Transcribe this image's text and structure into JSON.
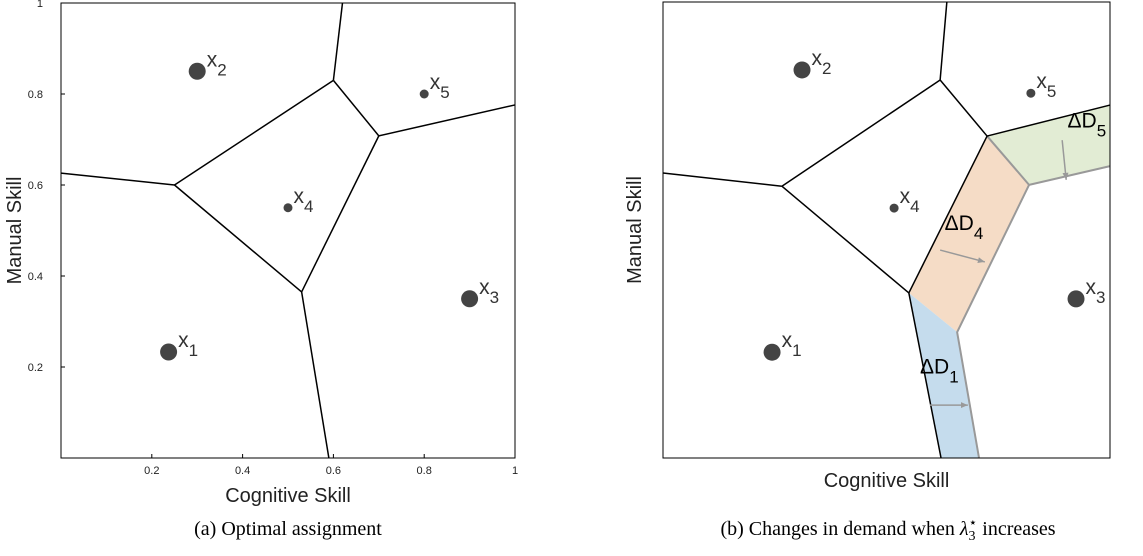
{
  "chart_data": [
    {
      "type": "scatter",
      "xlabel": "Cognitive Skill",
      "ylabel": "Manual Skill",
      "caption": "(a) Optimal assignment",
      "xlim": [
        0,
        1
      ],
      "ylim": [
        0,
        1
      ],
      "xticks": [
        0.2,
        0.4,
        0.6,
        0.8,
        1
      ],
      "yticks": [
        0.2,
        0.4,
        0.6,
        0.8,
        1
      ],
      "color": "#444",
      "x": [
        0.237,
        0.3,
        0.9,
        0.5,
        0.8
      ],
      "y": [
        0.233,
        0.85,
        0.35,
        0.55,
        0.8
      ],
      "marker_sizes": [
        "large",
        "large",
        "large",
        "small",
        "small"
      ],
      "point_labels": [
        {
          "text": "x",
          "sub": "1"
        },
        {
          "text": "x",
          "sub": "2"
        },
        {
          "text": "x",
          "sub": "3"
        },
        {
          "text": "x",
          "sub": "4"
        },
        {
          "text": "x",
          "sub": "5"
        }
      ],
      "boundaries": [
        [
          [
            0,
            0.626
          ],
          [
            0.25,
            0.6
          ]
        ],
        [
          [
            0.25,
            0.6
          ],
          [
            0.53,
            0.365
          ]
        ],
        [
          [
            0.25,
            0.6
          ],
          [
            0.6,
            0.83
          ]
        ],
        [
          [
            0.6,
            0.83
          ],
          [
            0.62,
            1
          ]
        ],
        [
          [
            0.6,
            0.83
          ],
          [
            0.7,
            0.708
          ]
        ],
        [
          [
            0.7,
            0.708
          ],
          [
            1,
            0.776
          ]
        ],
        [
          [
            0.7,
            0.708
          ],
          [
            0.53,
            0.365
          ]
        ],
        [
          [
            0.53,
            0.365
          ],
          [
            0.59,
            0
          ]
        ]
      ]
    },
    {
      "type": "scatter",
      "xlabel": "Cognitive Skill",
      "ylabel": "Manual Skill",
      "caption": {
        "before": "(b) Changes in demand when ",
        "symbol": "λ",
        "sub": "3",
        "sup": "⋆",
        "after": " increases"
      },
      "xlim": [
        0,
        1
      ],
      "ylim": [
        0,
        1
      ],
      "color": "#444",
      "x": [
        0.244,
        0.311,
        0.924,
        0.517,
        0.823
      ],
      "y": [
        0.232,
        0.851,
        0.349,
        0.548,
        0.8
      ],
      "marker_sizes": [
        "large",
        "large",
        "large",
        "small",
        "small"
      ],
      "point_labels": [
        {
          "text": "x",
          "sub": "1"
        },
        {
          "text": "x",
          "sub": "2"
        },
        {
          "text": "x",
          "sub": "3"
        },
        {
          "text": "x",
          "sub": "4"
        },
        {
          "text": "x",
          "sub": "5"
        }
      ],
      "regions": [
        {
          "color": "#e2ecd4",
          "points": [
            [
              0.725,
              0.706
            ],
            [
              1,
              0.774
            ],
            [
              1,
              0.64
            ],
            [
              0.819,
              0.599
            ]
          ]
        },
        {
          "color": "#f5dcc6",
          "points": [
            [
              0.725,
              0.706
            ],
            [
              0.819,
              0.599
            ],
            [
              0.658,
              0.276
            ],
            [
              0.55,
              0.362
            ]
          ]
        },
        {
          "color": "#c5dced",
          "points": [
            [
              0.55,
              0.362
            ],
            [
              0.658,
              0.276
            ],
            [
              0.707,
              0
            ],
            [
              0.622,
              0
            ]
          ]
        }
      ],
      "shifted_boundaries": [
        [
          [
            0.725,
            0.706
          ],
          [
            0.819,
            0.599
          ],
          [
            1,
            0.64
          ]
        ],
        [
          [
            0.819,
            0.599
          ],
          [
            0.658,
            0.276
          ],
          [
            0.707,
            0
          ]
        ]
      ],
      "boundaries": [
        [
          [
            0,
            0.625
          ],
          [
            0.266,
            0.596
          ]
        ],
        [
          [
            0.266,
            0.596
          ],
          [
            0.55,
            0.362
          ]
        ],
        [
          [
            0.266,
            0.596
          ],
          [
            0.62,
            0.829
          ]
        ],
        [
          [
            0.62,
            0.829
          ],
          [
            0.635,
            1
          ]
        ],
        [
          [
            0.62,
            0.829
          ],
          [
            0.725,
            0.706
          ]
        ],
        [
          [
            0.725,
            0.706
          ],
          [
            1,
            0.774
          ]
        ],
        [
          [
            0.725,
            0.706
          ],
          [
            0.55,
            0.362
          ]
        ],
        [
          [
            0.55,
            0.362
          ],
          [
            0.622,
            0
          ]
        ]
      ],
      "arrows": [
        [
          [
            0.893,
            0.697
          ],
          [
            0.902,
            0.61
          ]
        ],
        [
          [
            0.62,
            0.456
          ],
          [
            0.72,
            0.43
          ]
        ],
        [
          [
            0.597,
            0.116
          ],
          [
            0.682,
            0.116
          ]
        ]
      ],
      "annotations": [
        {
          "text": "ΔD",
          "sub": "5",
          "x": 0.905,
          "y": 0.725
        },
        {
          "text": "ΔD",
          "sub": "4",
          "x": 0.63,
          "y": 0.5
        },
        {
          "text": "ΔD",
          "sub": "1",
          "x": 0.575,
          "y": 0.185
        }
      ]
    }
  ]
}
